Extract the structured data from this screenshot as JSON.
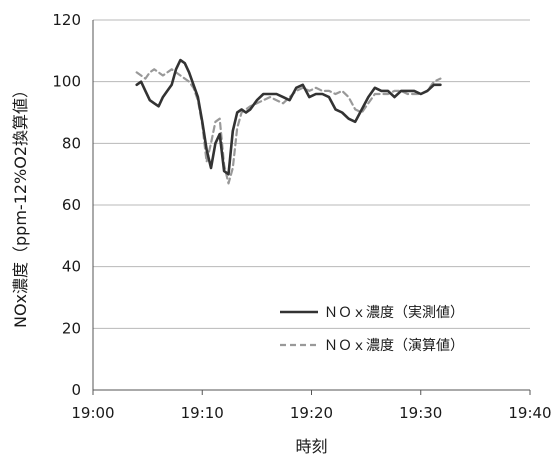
{
  "chart_data": {
    "type": "line",
    "xlabel": "時刻",
    "ylabel": "NOx濃度（ppm-12%O2換算値）",
    "xlim": [
      "19:00",
      "19:40"
    ],
    "x_ticks": [
      "19:00",
      "19:10",
      "19:20",
      "19:30",
      "19:40"
    ],
    "ylim": [
      0,
      120
    ],
    "y_ticks": [
      "0",
      "20",
      "40",
      "60",
      "80",
      "100",
      "120"
    ],
    "grid": "horizontal",
    "legend": "lower-right",
    "series": [
      {
        "name": "ＮＯｘ濃度（実測値）",
        "style": "solid",
        "color": "#333333",
        "x": [
          "19:04.0",
          "19:04.4",
          "19:04.8",
          "19:05.2",
          "19:05.6",
          "19:06.0",
          "19:06.4",
          "19:06.8",
          "19:07.2",
          "19:07.6",
          "19:08.0",
          "19:08.4",
          "19:08.8",
          "19:09.2",
          "19:09.6",
          "19:10.0",
          "19:10.4",
          "19:10.8",
          "19:11.2",
          "19:11.6",
          "19:12.0",
          "19:12.4",
          "19:12.8",
          "19:13.2",
          "19:13.6",
          "19:14.0",
          "19:14.4",
          "19:15.0",
          "19:15.6",
          "19:16.2",
          "19:16.8",
          "19:17.4",
          "19:18.0",
          "19:18.6",
          "19:19.2",
          "19:19.8",
          "19:20.4",
          "19:21.0",
          "19:21.6",
          "19:22.2",
          "19:22.8",
          "19:23.4",
          "19:24.0",
          "19:24.6",
          "19:25.2",
          "19:25.8",
          "19:26.4",
          "19:27.0",
          "19:27.6",
          "19:28.2",
          "19:28.8",
          "19:29.4",
          "19:30.0",
          "19:30.6",
          "19:31.2",
          "19:31.8"
        ],
        "values": [
          99,
          100,
          97,
          94,
          93,
          92,
          95,
          97,
          99,
          104,
          107,
          106,
          103,
          99,
          95,
          87,
          78,
          72,
          80,
          83,
          71,
          70,
          84,
          90,
          91,
          90,
          91,
          94,
          96,
          96,
          96,
          95,
          94,
          98,
          99,
          95,
          96,
          96,
          95,
          91,
          90,
          88,
          87,
          91,
          95,
          98,
          97,
          97,
          95,
          97,
          97,
          97,
          96,
          97,
          99,
          99
        ]
      },
      {
        "name": "ＮＯｘ濃度（演算値）",
        "style": "dashed",
        "color": "#999999",
        "x": [
          "19:04.0",
          "19:04.4",
          "19:04.8",
          "19:05.2",
          "19:05.6",
          "19:06.0",
          "19:06.4",
          "19:06.8",
          "19:07.2",
          "19:07.6",
          "19:08.0",
          "19:08.4",
          "19:08.8",
          "19:09.2",
          "19:09.6",
          "19:10.0",
          "19:10.4",
          "19:10.8",
          "19:11.2",
          "19:11.6",
          "19:12.0",
          "19:12.4",
          "19:12.8",
          "19:13.2",
          "19:13.6",
          "19:14.0",
          "19:14.4",
          "19:15.0",
          "19:15.6",
          "19:16.2",
          "19:16.8",
          "19:17.4",
          "19:18.0",
          "19:18.6",
          "19:19.2",
          "19:19.8",
          "19:20.4",
          "19:21.0",
          "19:21.6",
          "19:22.2",
          "19:22.8",
          "19:23.4",
          "19:24.0",
          "19:24.6",
          "19:25.2",
          "19:25.8",
          "19:26.4",
          "19:27.0",
          "19:27.6",
          "19:28.2",
          "19:28.8",
          "19:29.4",
          "19:30.0",
          "19:30.6",
          "19:31.2",
          "19:31.8"
        ],
        "values": [
          103,
          102,
          101,
          103,
          104,
          103,
          102,
          103,
          104,
          103,
          102,
          101,
          100,
          98,
          94,
          86,
          74,
          80,
          87,
          88,
          73,
          67,
          72,
          85,
          90,
          91,
          92,
          93,
          94,
          95,
          94,
          93,
          95,
          97,
          98,
          97,
          98,
          97,
          97,
          96,
          97,
          95,
          91,
          90,
          93,
          96,
          96,
          96,
          97,
          97,
          96,
          96,
          96,
          97,
          100,
          101
        ]
      }
    ]
  }
}
